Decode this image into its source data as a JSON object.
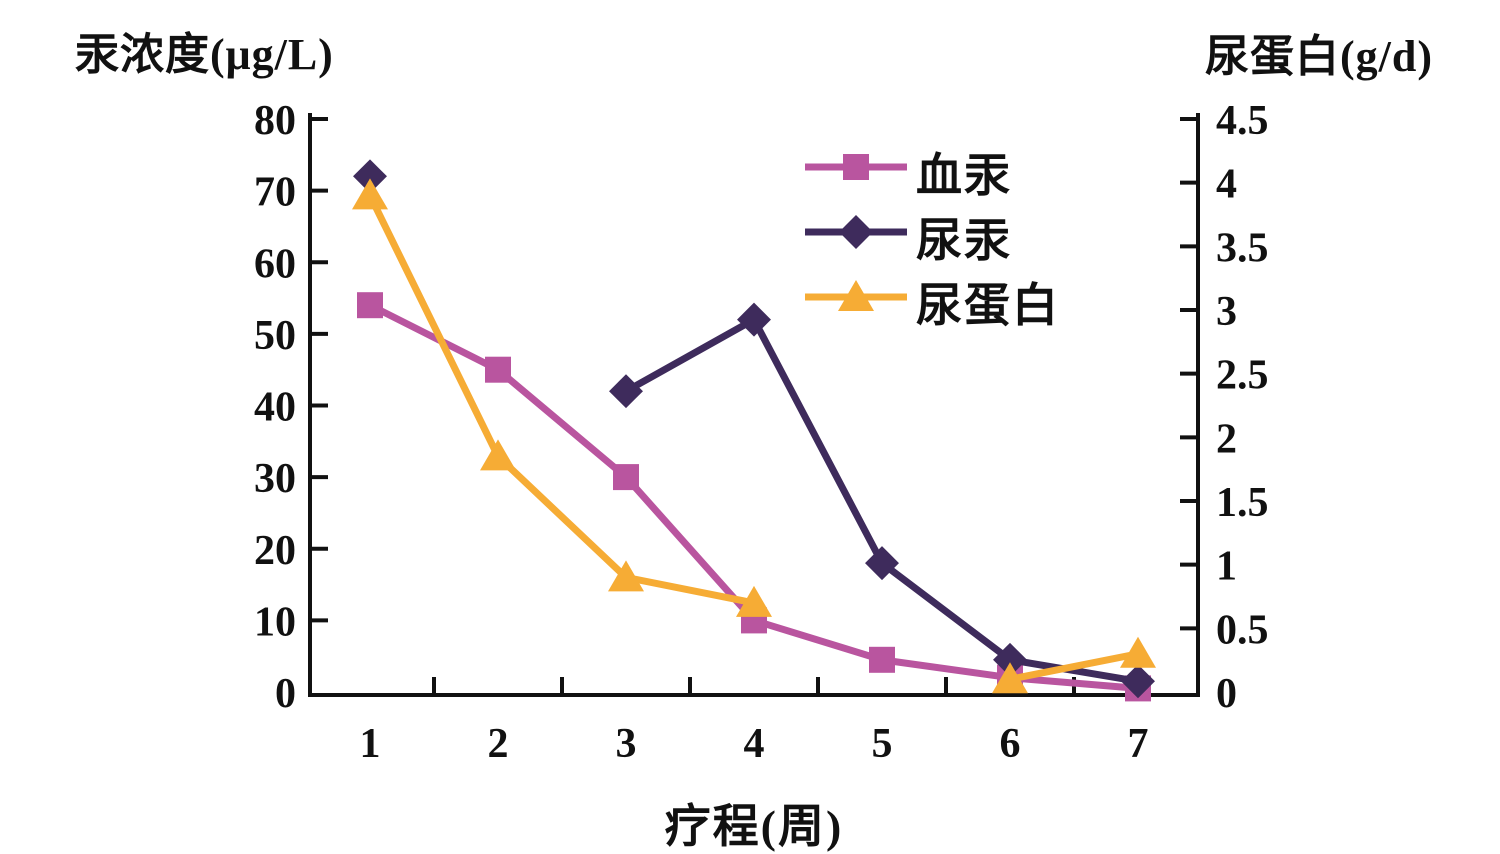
{
  "left_axis": {
    "title": "汞浓度(μg/L)",
    "ticks": [
      80,
      70,
      60,
      50,
      40,
      30,
      20,
      10,
      0
    ],
    "min": 0,
    "max": 80
  },
  "right_axis": {
    "title": "尿蛋白(g/d)",
    "ticks": [
      4.5,
      4,
      3.5,
      3,
      2.5,
      2,
      1.5,
      1,
      0.5,
      0
    ],
    "min": 0,
    "max": 4.5
  },
  "x_axis": {
    "title": "疗程(周)",
    "labels": [
      "1",
      "2",
      "3",
      "4",
      "5",
      "6",
      "7"
    ]
  },
  "legend": {
    "position": "inside-top-right",
    "items": [
      {
        "label": "血汞",
        "marker": "square",
        "color": "#b9559f"
      },
      {
        "label": "尿汞",
        "marker": "diamond",
        "color": "#3e2b5c"
      },
      {
        "label": "尿蛋白",
        "marker": "triangle",
        "color": "#f6ac35"
      }
    ]
  },
  "chart_data": {
    "type": "line",
    "x": [
      1,
      2,
      3,
      4,
      5,
      6,
      7
    ],
    "xlabel": "疗程(周)",
    "ylabel_left": "汞浓度(μg/L)",
    "ylabel_right": "尿蛋白(g/d)",
    "ylim_left": [
      0,
      80
    ],
    "ylim_right": [
      0,
      4.5
    ],
    "grid": false,
    "legend_position": "inside-top-right",
    "series": [
      {
        "name": "血汞",
        "axis": "left",
        "marker": "square",
        "color": "#b9559f",
        "values": [
          54,
          45,
          30,
          10,
          4.5,
          2,
          0.5
        ]
      },
      {
        "name": "尿汞",
        "axis": "left",
        "marker": "diamond",
        "color": "#3e2b5c",
        "values": [
          72,
          null,
          42,
          52,
          18,
          4.5,
          1.5
        ]
      },
      {
        "name": "尿蛋白",
        "axis": "right",
        "marker": "triangle",
        "color": "#f6ac35",
        "values": [
          3.9,
          1.85,
          0.9,
          0.7,
          null,
          0.1,
          0.3
        ]
      }
    ],
    "notes": "尿汞 has no point at week 2 and 尿蛋白 has no point at week 5; lines are broken across these gaps (week-1 尿汞 point is isolated)."
  },
  "axis_color": "#111111"
}
